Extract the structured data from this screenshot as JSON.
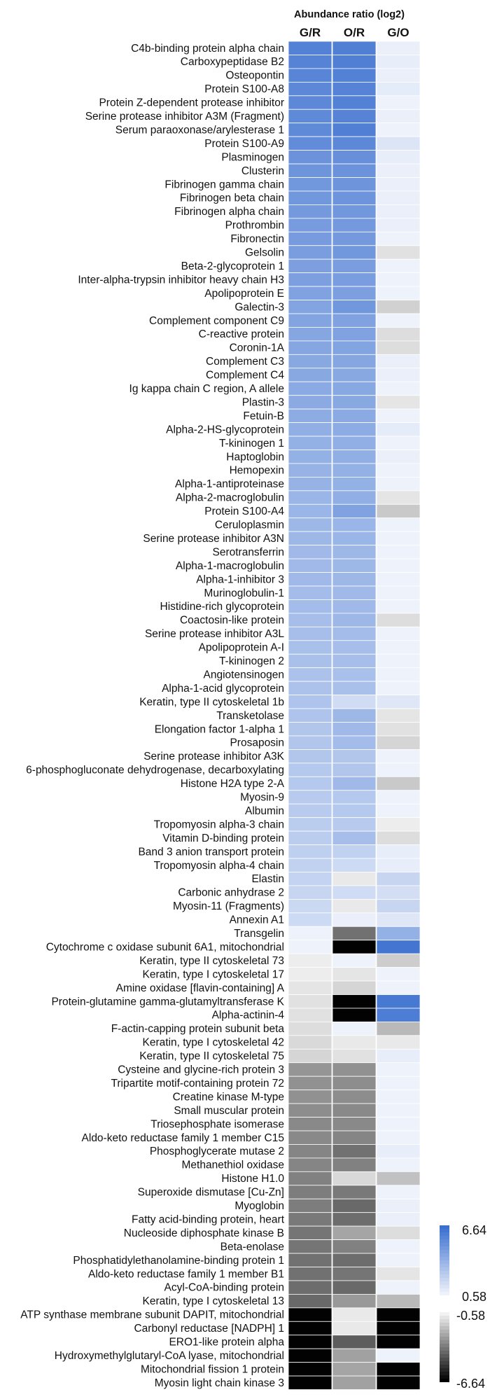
{
  "chart_data": {
    "type": "heatmap",
    "title": "Abundance ratio (log2)",
    "columns": [
      "G/R",
      "O/R",
      "G/O"
    ],
    "rows": [
      "C4b-binding protein alpha chain",
      "Carboxypeptidase B2",
      "Osteopontin",
      "Protein S100-A8",
      "Protein Z-dependent protease inhibitor",
      "Serine protease inhibitor A3M (Fragment)",
      "Serum paraoxonase/arylesterase 1",
      "Protein S100-A9",
      "Plasminogen",
      "Clusterin",
      "Fibrinogen gamma chain",
      "Fibrinogen beta chain",
      "Fibrinogen alpha chain",
      "Prothrombin",
      "Fibronectin",
      "Gelsolin",
      "Beta-2-glycoprotein 1",
      "Inter-alpha-trypsin inhibitor heavy chain H3",
      "Apolipoprotein E",
      "Galectin-3",
      "Complement component C9",
      "C-reactive protein",
      "Coronin-1A",
      "Complement C3",
      "Complement C4",
      "Ig kappa chain C region, A allele",
      "Plastin-3",
      "Fetuin-B",
      "Alpha-2-HS-glycoprotein",
      "T-kininogen 1",
      "Haptoglobin",
      "Hemopexin",
      "Alpha-1-antiproteinase",
      "Alpha-2-macroglobulin",
      "Protein S100-A4",
      "Ceruloplasmin",
      "Serine protease inhibitor A3N",
      "Serotransferrin",
      "Alpha-1-macroglobulin",
      "Alpha-1-inhibitor 3",
      "Murinoglobulin-1",
      "Histidine-rich glycoprotein",
      "Coactosin-like protein",
      "Serine protease inhibitor A3L",
      "Apolipoprotein A-I",
      "T-kininogen 2",
      "Angiotensinogen",
      "Alpha-1-acid glycoprotein",
      "Keratin, type II cytoskeletal 1b",
      "Transketolase",
      "Elongation factor 1-alpha 1",
      "Prosaposin",
      "Serine protease inhibitor A3K",
      "6-phosphogluconate dehydrogenase, decarboxylating",
      "Histone H2A type 2-A",
      "Myosin-9",
      "Albumin",
      "Tropomyosin alpha-3 chain",
      "Vitamin D-binding protein",
      "Band 3 anion transport protein",
      "Tropomyosin alpha-4 chain",
      "Elastin",
      "Carbonic anhydrase 2",
      "Myosin-11 (Fragments)",
      "Annexin A1",
      "Transgelin",
      "Cytochrome c oxidase subunit 6A1, mitochondrial",
      "Keratin, type II cytoskeletal 73",
      "Keratin, type I cytoskeletal 17",
      "Amine oxidase [flavin-containing] A",
      "Protein-glutamine gamma-glutamyltransferase K",
      "Alpha-actinin-4",
      "F-actin-capping protein subunit beta",
      "Keratin, type I cytoskeletal 42",
      "Keratin, type II cytoskeletal 75",
      "Cysteine and glycine-rich protein 3",
      "Tripartite motif-containing protein 72",
      "Creatine kinase M-type",
      "Small muscular protein",
      "Triosephosphate isomerase",
      "Aldo-keto reductase family 1 member C15",
      "Phosphoglycerate mutase 2",
      "Methanethiol oxidase",
      "Histone H1.0",
      "Superoxide dismutase [Cu-Zn]",
      "Myoglobin",
      "Fatty acid-binding protein, heart",
      "Nucleoside diphosphate kinase B",
      "Beta-enolase",
      "Phosphatidylethanolamine-binding protein 1",
      "Aldo-keto reductase family 1 member B1",
      "Acyl-CoA-binding protein",
      "Keratin, type I cytoskeletal 13",
      "ATP synthase membrane subunit DAPIT, mitochondrial",
      "Carbonyl reductase [NADPH] 1",
      "ERO1-like protein alpha",
      "Hydroxymethylglutaryl-CoA lyase, mitochondrial",
      "Mitochondrial fission 1 protein",
      "Myosin light chain kinase 3"
    ],
    "values": [
      [
        5.8,
        5.9,
        0.7
      ],
      [
        5.7,
        5.9,
        0.8
      ],
      [
        5.6,
        5.8,
        0.7
      ],
      [
        5.5,
        5.7,
        0.9
      ],
      [
        5.5,
        5.8,
        0.6
      ],
      [
        5.4,
        5.7,
        0.7
      ],
      [
        5.4,
        5.9,
        0.6
      ],
      [
        5.3,
        5.5,
        1.2
      ],
      [
        5.0,
        5.1,
        0.8
      ],
      [
        4.9,
        5.0,
        0.7
      ],
      [
        4.8,
        4.9,
        0.7
      ],
      [
        4.8,
        4.9,
        0.7
      ],
      [
        4.7,
        4.8,
        0.7
      ],
      [
        4.6,
        4.7,
        0.7
      ],
      [
        4.6,
        4.7,
        0.6
      ],
      [
        4.5,
        4.8,
        -1.0
      ],
      [
        4.4,
        4.5,
        0.6
      ],
      [
        4.4,
        4.5,
        0.6
      ],
      [
        4.3,
        4.4,
        0.6
      ],
      [
        4.2,
        4.8,
        -1.4
      ],
      [
        4.2,
        4.3,
        0.6
      ],
      [
        4.1,
        4.3,
        -1.1
      ],
      [
        4.1,
        4.2,
        -1.1
      ],
      [
        4.0,
        4.1,
        0.7
      ],
      [
        4.0,
        4.0,
        0.7
      ],
      [
        3.9,
        4.0,
        0.6
      ],
      [
        3.9,
        4.0,
        -0.9
      ],
      [
        3.8,
        3.9,
        0.6
      ],
      [
        3.7,
        3.8,
        0.9
      ],
      [
        3.6,
        3.7,
        0.6
      ],
      [
        3.6,
        3.7,
        0.7
      ],
      [
        3.5,
        3.6,
        0.6
      ],
      [
        3.5,
        3.6,
        0.6
      ],
      [
        3.4,
        3.7,
        -0.9
      ],
      [
        3.4,
        4.3,
        -1.6
      ],
      [
        3.3,
        3.4,
        0.6
      ],
      [
        3.3,
        3.4,
        0.6
      ],
      [
        3.2,
        3.3,
        0.6
      ],
      [
        3.2,
        3.3,
        0.6
      ],
      [
        3.2,
        3.3,
        0.6
      ],
      [
        3.1,
        3.2,
        0.6
      ],
      [
        3.1,
        3.2,
        0.6
      ],
      [
        3.0,
        3.3,
        -1.1
      ],
      [
        3.0,
        3.1,
        0.6
      ],
      [
        2.9,
        3.0,
        0.6
      ],
      [
        2.9,
        3.0,
        0.6
      ],
      [
        2.8,
        2.9,
        0.6
      ],
      [
        2.8,
        2.9,
        0.6
      ],
      [
        2.7,
        1.6,
        1.1
      ],
      [
        2.7,
        3.3,
        -0.9
      ],
      [
        2.6,
        3.2,
        -1.0
      ],
      [
        2.6,
        3.1,
        -1.3
      ],
      [
        2.6,
        2.6,
        0.6
      ],
      [
        2.5,
        2.6,
        0.6
      ],
      [
        2.5,
        3.2,
        -1.6
      ],
      [
        2.4,
        2.5,
        0.6
      ],
      [
        2.4,
        2.5,
        0.6
      ],
      [
        2.3,
        2.4,
        -0.7
      ],
      [
        2.3,
        3.0,
        -1.1
      ],
      [
        2.2,
        2.1,
        0.8
      ],
      [
        2.1,
        1.7,
        0.8
      ],
      [
        2.0,
        -0.8,
        1.9
      ],
      [
        1.9,
        1.6,
        1.5
      ],
      [
        1.8,
        -0.8,
        1.9
      ],
      [
        1.7,
        0.7,
        1.1
      ],
      [
        0.6,
        -3.8,
        3.6
      ],
      [
        0.6,
        -6.6,
        6.3
      ],
      [
        -0.7,
        0.6,
        -1.5
      ],
      [
        -0.7,
        -0.9,
        0.6
      ],
      [
        -0.9,
        -1.3,
        0.6
      ],
      [
        -1.0,
        -6.6,
        6.2
      ],
      [
        -1.0,
        -6.6,
        6.0
      ],
      [
        -1.1,
        0.6,
        -2.0
      ],
      [
        -1.2,
        -0.8,
        -0.8
      ],
      [
        -1.3,
        -1.0,
        0.8
      ],
      [
        -2.9,
        -3.0,
        0.6
      ],
      [
        -3.0,
        -3.1,
        0.6
      ],
      [
        -3.0,
        -3.1,
        0.6
      ],
      [
        -3.1,
        -3.2,
        0.6
      ],
      [
        -3.2,
        -3.2,
        0.6
      ],
      [
        -3.2,
        -3.3,
        0.6
      ],
      [
        -3.3,
        -3.8,
        0.8
      ],
      [
        -3.3,
        -3.4,
        0.6
      ],
      [
        -3.4,
        -1.2,
        -1.8
      ],
      [
        -3.5,
        -3.6,
        0.6
      ],
      [
        -3.5,
        -4.0,
        0.7
      ],
      [
        -3.6,
        -3.9,
        0.7
      ],
      [
        -3.7,
        -2.5,
        -1.1
      ],
      [
        -3.7,
        -3.4,
        0.6
      ],
      [
        -3.8,
        -3.9,
        0.6
      ],
      [
        -3.8,
        -3.7,
        -0.9
      ],
      [
        -3.9,
        -4.0,
        0.6
      ],
      [
        -4.0,
        -2.8,
        -2.0
      ],
      [
        -6.6,
        -0.8,
        -6.6
      ],
      [
        -6.6,
        -0.8,
        -6.6
      ],
      [
        -6.6,
        -4.3,
        -6.6
      ],
      [
        -6.6,
        -2.6,
        0.6
      ],
      [
        -6.6,
        -2.5,
        -6.6
      ],
      [
        -6.6,
        -2.6,
        -6.6
      ]
    ],
    "legend": {
      "positive": {
        "min": 0.58,
        "max": 6.64,
        "color_low": "#eef2fb",
        "color_high": "#3a6fcf"
      },
      "negative": {
        "min": -6.64,
        "max": -0.58,
        "color_low": "#000000",
        "color_high": "#f2f2f2"
      },
      "labels": [
        "6.64",
        "0.58",
        "-0.58",
        "-6.64"
      ],
      "placement": "bottom-right"
    }
  }
}
